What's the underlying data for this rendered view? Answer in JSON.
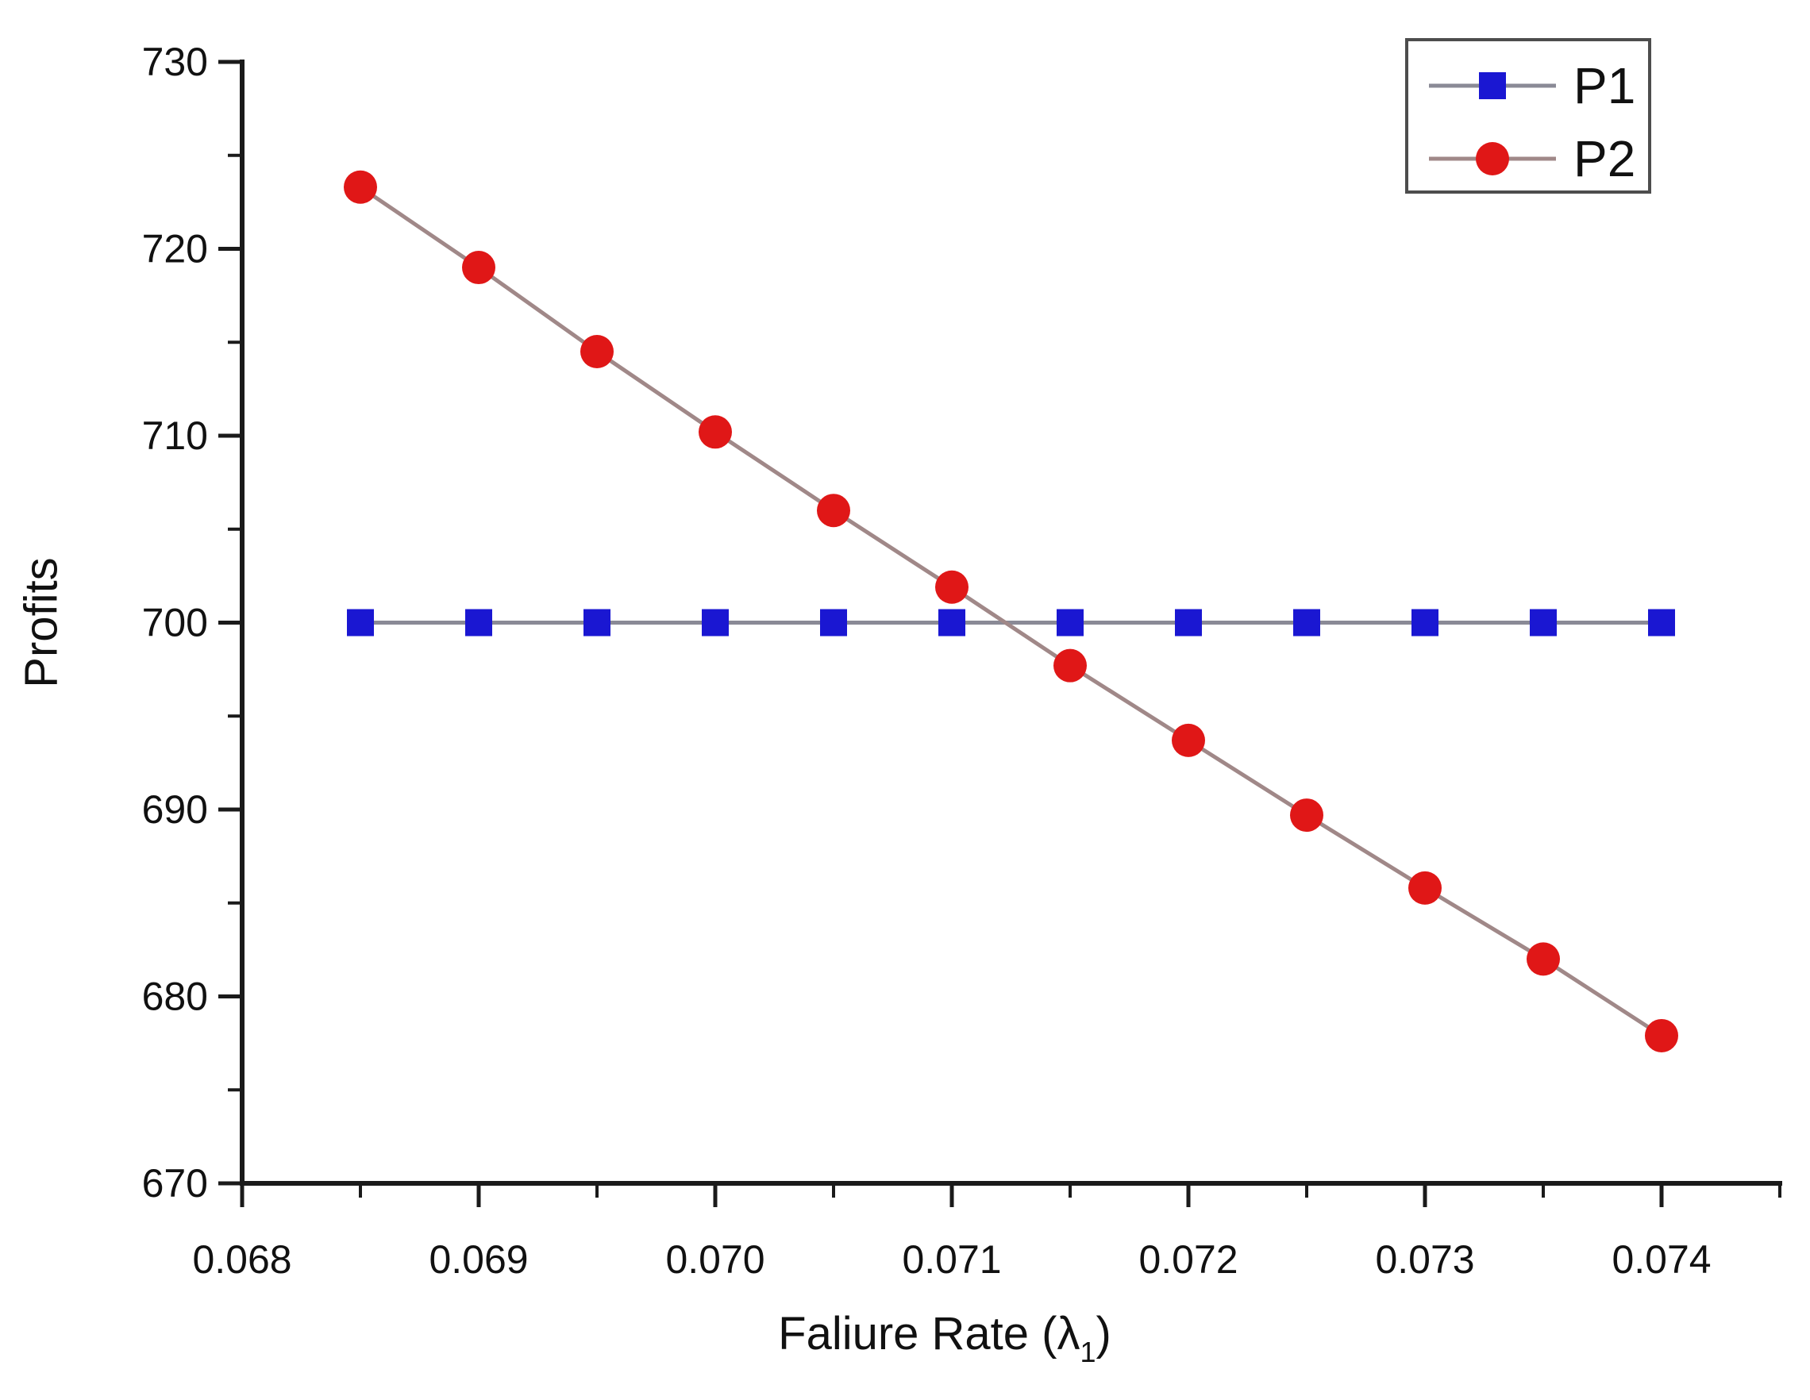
{
  "chart_data": {
    "type": "line",
    "title": "",
    "xlabel": "Faliure Rate (λ1)",
    "xlabel_parts": {
      "prefix": "Faliure Rate (",
      "symbol": "λ",
      "subscript": "1",
      "suffix": ")"
    },
    "ylabel": "Profits",
    "x": [
      0.0685,
      0.069,
      0.0695,
      0.07,
      0.0705,
      0.071,
      0.0715,
      0.072,
      0.0725,
      0.073,
      0.0735,
      0.074
    ],
    "series": [
      {
        "name": "P1",
        "values": [
          700,
          700,
          700,
          700,
          700,
          700,
          700,
          700,
          700,
          700,
          700,
          700
        ],
        "marker": "square",
        "marker_color": "#1a17d2",
        "line_color": "#8a8a96"
      },
      {
        "name": "P2",
        "values": [
          723.3,
          719.0,
          714.5,
          710.2,
          706.0,
          701.9,
          697.7,
          693.7,
          689.7,
          685.8,
          682.0,
          677.9
        ],
        "marker": "circle",
        "marker_color": "#e01717",
        "line_color": "#a08888"
      }
    ],
    "xlim": [
      0.068,
      0.0745
    ],
    "ylim": [
      670,
      730
    ],
    "xticks_major": [
      0.068,
      0.069,
      0.07,
      0.071,
      0.072,
      0.073,
      0.074
    ],
    "xtick_labels": [
      "0.068",
      "0.069",
      "0.070",
      "0.071",
      "0.072",
      "0.073",
      "0.074"
    ],
    "xticks_minor": [
      0.0685,
      0.0695,
      0.0705,
      0.0715,
      0.0725,
      0.0735,
      0.0745
    ],
    "yticks_major": [
      670,
      680,
      690,
      700,
      710,
      720,
      730
    ],
    "ytick_labels": [
      "670",
      "680",
      "690",
      "700",
      "710",
      "720",
      "730"
    ],
    "yticks_minor": [
      675,
      685,
      695,
      705,
      715,
      725
    ],
    "legend": {
      "entries": [
        "P1",
        "P2"
      ],
      "position": "top-right"
    },
    "grid": false,
    "axis_color": "#1a1a1a",
    "text_color": "#111111",
    "background": "#ffffff"
  }
}
